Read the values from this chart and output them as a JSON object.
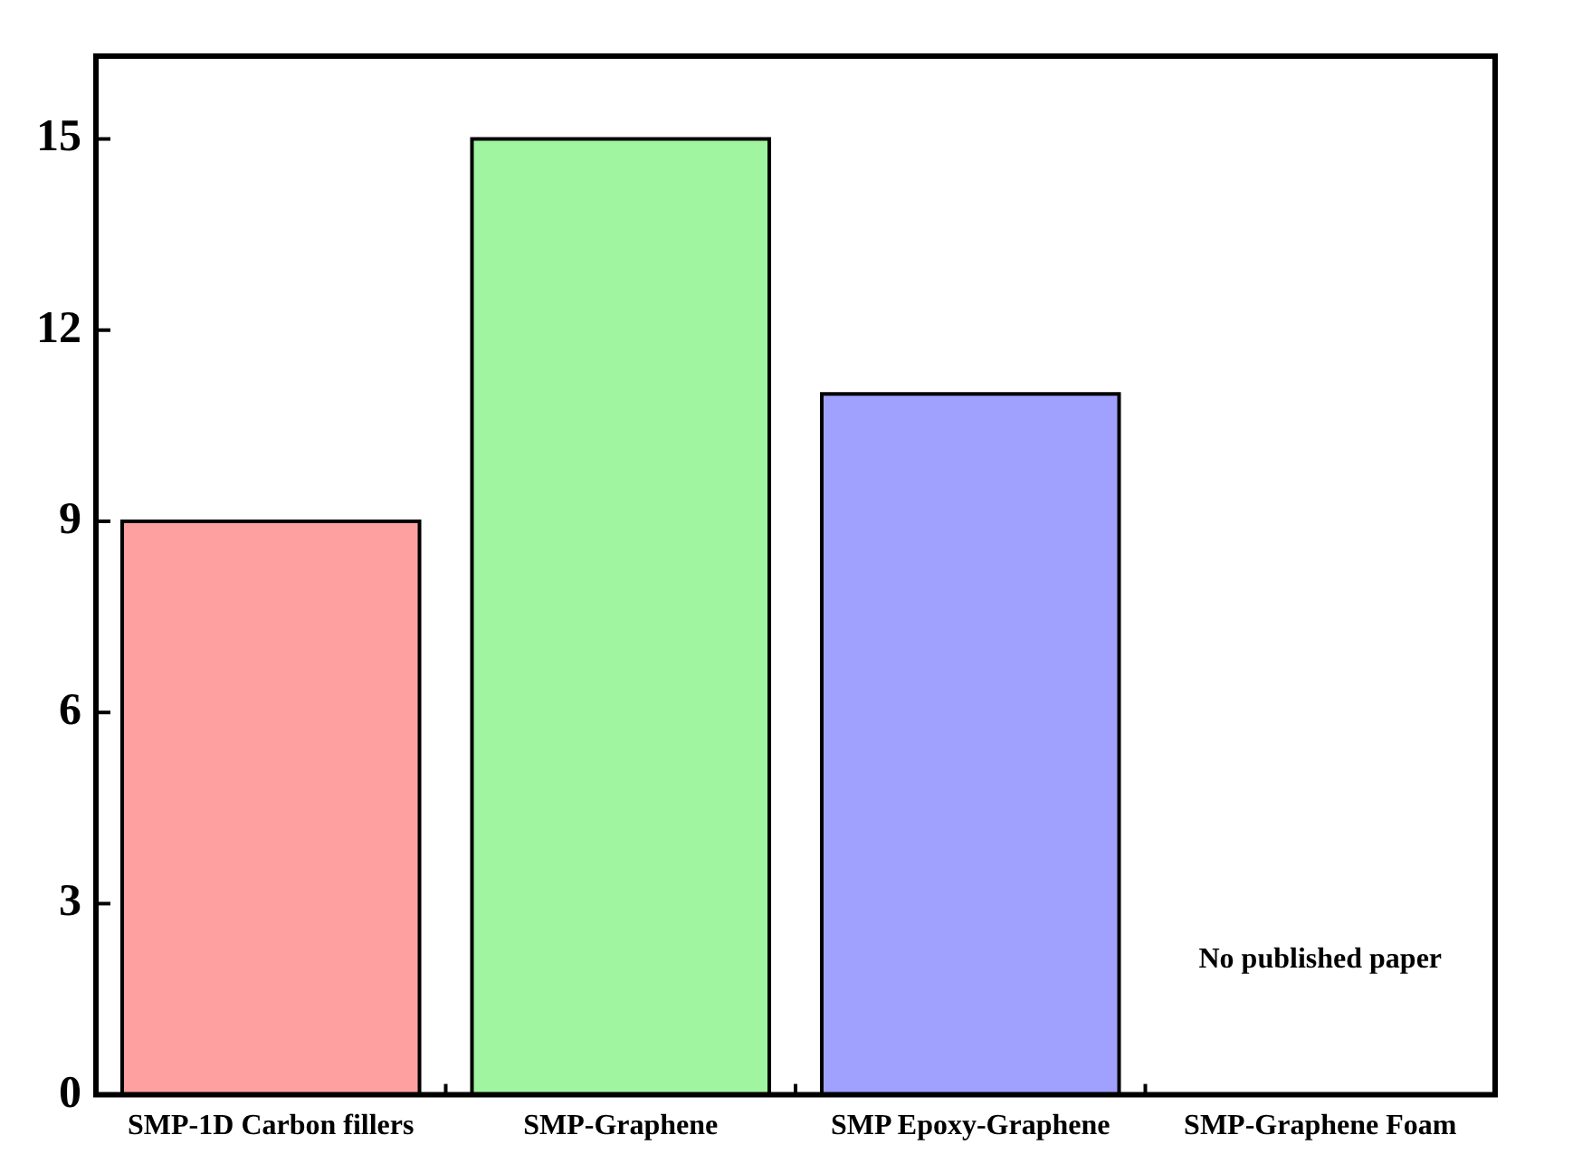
{
  "chart_data": {
    "type": "bar",
    "categories": [
      "SMP-1D Carbon fillers",
      "SMP-Graphene",
      "SMP Epoxy-Graphene",
      "SMP-Graphene Foam"
    ],
    "values": [
      9,
      15,
      11,
      null
    ],
    "colors": [
      "#ffa0a0",
      "#a0f5a0",
      "#a0a0ff",
      null
    ],
    "ylim": [
      0,
      16.3
    ],
    "yticks": [
      0,
      3,
      6,
      9,
      12,
      15
    ],
    "grid": false,
    "legend": false,
    "annotations": [
      "No published paper"
    ]
  }
}
